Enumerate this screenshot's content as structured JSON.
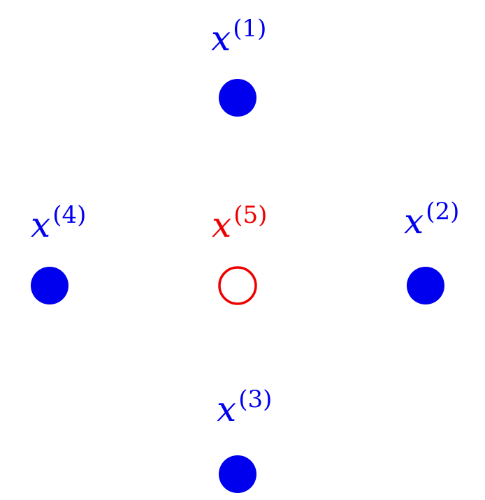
{
  "colors": {
    "primary": "#0000ee",
    "highlight": "#ee0000",
    "background": "#ffffff"
  },
  "points": [
    {
      "id": "p1",
      "label": "x",
      "superscript": "(1)",
      "color": "#0000ee",
      "filled": true
    },
    {
      "id": "p2",
      "label": "x",
      "superscript": "(2)",
      "color": "#0000ee",
      "filled": true
    },
    {
      "id": "p3",
      "label": "x",
      "superscript": "(3)",
      "color": "#0000ee",
      "filled": true
    },
    {
      "id": "p4",
      "label": "x",
      "superscript": "(4)",
      "color": "#0000ee",
      "filled": true
    },
    {
      "id": "p5",
      "label": "x",
      "superscript": "(5)",
      "color": "#ee0000",
      "filled": false
    }
  ]
}
